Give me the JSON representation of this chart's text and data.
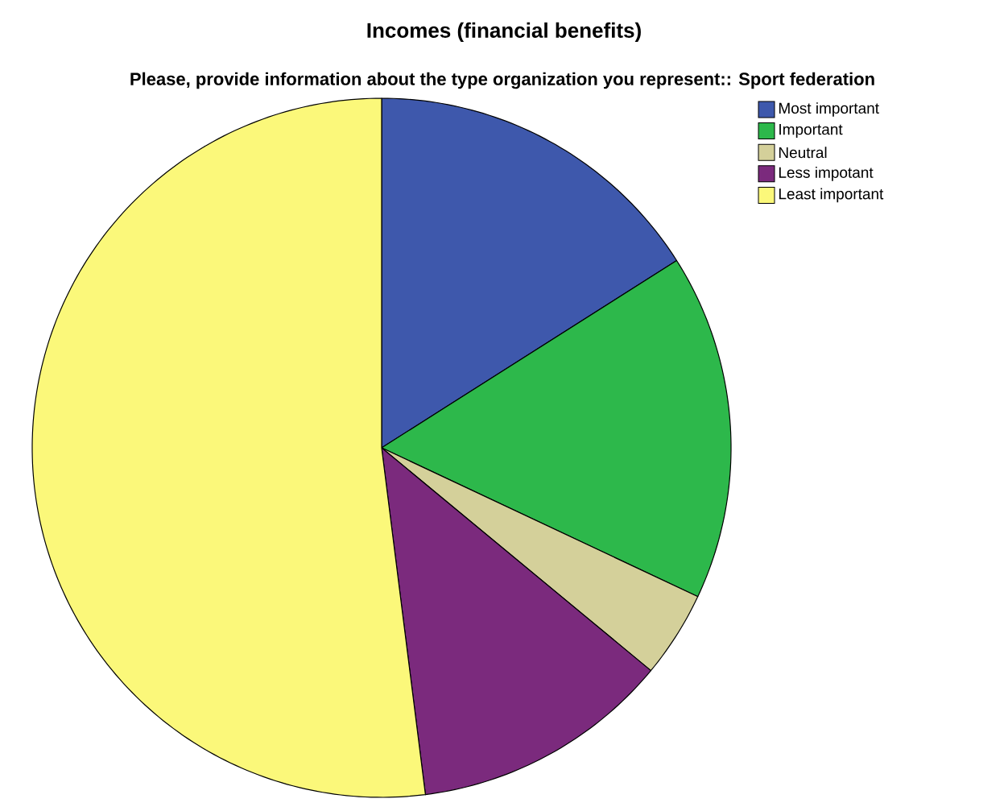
{
  "chart_data": {
    "type": "pie",
    "title": "Incomes (financial benefits)",
    "subtitle": "Please, provide information about the type organization you represent:: Sport federation",
    "categories": [
      "Most important",
      "Important",
      "Neutral",
      "Less impotant",
      "Least important"
    ],
    "values": [
      16,
      16,
      4,
      12,
      52
    ],
    "colors": [
      "#3e58ac",
      "#2db84b",
      "#d4d09a",
      "#7b2a7d",
      "#fbf87a"
    ],
    "legend": "top right"
  }
}
